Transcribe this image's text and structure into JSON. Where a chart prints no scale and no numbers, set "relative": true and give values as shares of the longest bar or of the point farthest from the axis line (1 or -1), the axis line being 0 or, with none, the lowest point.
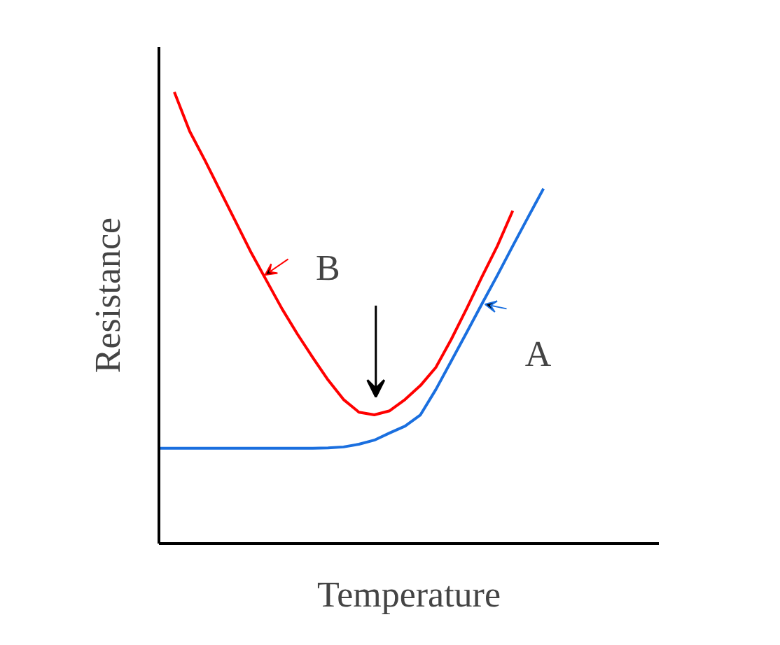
{
  "chart_data": {
    "type": "line",
    "relative": true,
    "xlabel": "Temperature",
    "ylabel": "Resistance",
    "categories": [
      null,
      null,
      null,
      null,
      null,
      null,
      null,
      null,
      null,
      null,
      null,
      null,
      null,
      null,
      null,
      null,
      null,
      null,
      null,
      null,
      null,
      null,
      null,
      null,
      null,
      null
    ],
    "series": [
      {
        "name": "A",
        "color": "#1a6fdf",
        "values": [
          0.211,
          0.211,
          0.211,
          0.211,
          0.211,
          0.211,
          0.211,
          0.211,
          0.211,
          0.211,
          0.211,
          0.212,
          0.214,
          0.22,
          0.229,
          0.245,
          0.26,
          0.285,
          0.341,
          0.404,
          0.467,
          0.531,
          0.594,
          0.659,
          0.723,
          0.786
        ]
      },
      {
        "name": "B",
        "color": "#ff0000",
        "values": [
          null,
          1,
          0.913,
          0.848,
          0.78,
          0.712,
          0.644,
          0.582,
          0.52,
          0.464,
          0.412,
          0.362,
          0.319,
          0.291,
          0.285,
          0.294,
          0.319,
          0.35,
          0.39,
          0.452,
          0.52,
          0.591,
          0.659,
          0.737,
          null,
          null
        ]
      }
    ]
  }
}
